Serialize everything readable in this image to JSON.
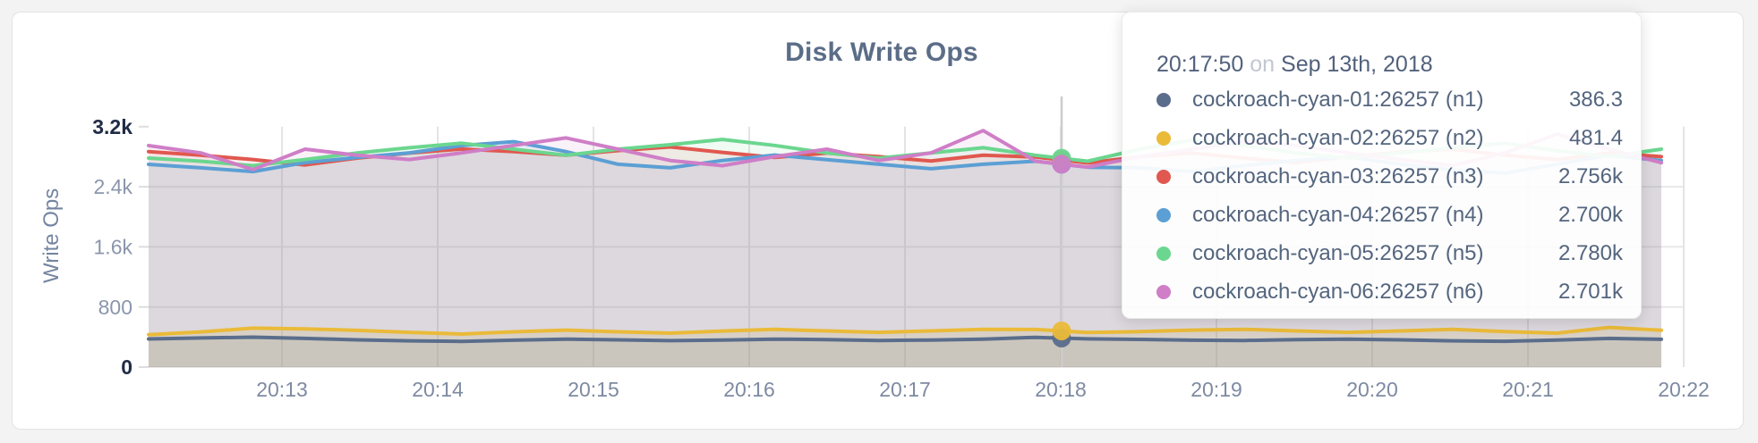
{
  "card": {
    "background": "#ffffff"
  },
  "colors": {
    "accent_text": "#5b6d87",
    "axis_tick_muted": "#8b96ab",
    "axis_tick_strong": "#202c46",
    "x_tick": "#7e8aa2",
    "hover_line": "#cccccc"
  },
  "chart_data": {
    "type": "line",
    "title": "Disk Write Ops",
    "ylabel": "Write Ops",
    "xlabel": "",
    "grid": true,
    "legend_position": "tooltip",
    "ylim": [
      0,
      3200
    ],
    "x_range": [
      "20:12:10",
      "20:21:50"
    ],
    "point_interval_seconds": 20,
    "x_ticks": [
      "20:13",
      "20:14",
      "20:15",
      "20:16",
      "20:17",
      "20:18",
      "20:19",
      "20:20",
      "20:21",
      "20:22"
    ],
    "y_ticks": [
      {
        "label": "3.2k",
        "value": 3200,
        "emphasis": true
      },
      {
        "label": "2.4k",
        "value": 2400,
        "emphasis": false
      },
      {
        "label": "1.6k",
        "value": 1600,
        "emphasis": false
      },
      {
        "label": "800",
        "value": 800,
        "emphasis": false
      },
      {
        "label": "0",
        "value": 0,
        "emphasis": true
      }
    ],
    "series": [
      {
        "name": "cockroach-cyan-01:26257 (n1)",
        "color": "#5a6d8c",
        "values": [
          375,
          388,
          398,
          382,
          362,
          350,
          342,
          358,
          372,
          362,
          352,
          360,
          372,
          366,
          354,
          360,
          372,
          396,
          376,
          368,
          358,
          354,
          366,
          372,
          362,
          350,
          344,
          360,
          382,
          370
        ]
      },
      {
        "name": "cockroach-cyan-02:26257 (n2)",
        "color": "#eaba39",
        "values": [
          432,
          468,
          518,
          508,
          488,
          462,
          440,
          470,
          492,
          470,
          452,
          480,
          502,
          482,
          462,
          482,
          502,
          501,
          461,
          472,
          492,
          503,
          481,
          462,
          482,
          502,
          472,
          452,
          528,
          490
        ]
      },
      {
        "name": "cockroach-cyan-03:26257 (n3)",
        "color": "#e0584f",
        "values": [
          2868,
          2820,
          2762,
          2690,
          2782,
          2848,
          2902,
          2868,
          2820,
          2882,
          2930,
          2858,
          2790,
          2848,
          2800,
          2742,
          2820,
          2796,
          2716,
          2800,
          2848,
          2782,
          2722,
          2800,
          2862,
          2900,
          2820,
          2762,
          2848,
          2800
        ]
      },
      {
        "name": "cockroach-cyan-04:26257 (n4)",
        "color": "#5c9fd4",
        "values": [
          2698,
          2652,
          2602,
          2722,
          2790,
          2852,
          2948,
          3000,
          2868,
          2700,
          2652,
          2750,
          2822,
          2760,
          2700,
          2640,
          2700,
          2740,
          2660,
          2652,
          2602,
          2682,
          2750,
          2800,
          2700,
          2622,
          2582,
          2700,
          2820,
          2750
        ]
      },
      {
        "name": "cockroach-cyan-05:26257 (n5)",
        "color": "#6bd68f",
        "values": [
          2782,
          2740,
          2680,
          2762,
          2850,
          2920,
          2980,
          2900,
          2820,
          2900,
          2960,
          3030,
          2950,
          2850,
          2780,
          2850,
          2920,
          2820,
          2740,
          2900,
          3020,
          2950,
          2850,
          2782,
          2850,
          2920,
          2980,
          2880,
          2800,
          2900
        ]
      },
      {
        "name": "cockroach-cyan-06:26257 (n6)",
        "color": "#cf7ec7",
        "values": [
          2948,
          2850,
          2630,
          2900,
          2820,
          2762,
          2850,
          2950,
          3050,
          2900,
          2750,
          2680,
          2800,
          2900,
          2750,
          2850,
          3148,
          2741,
          2661,
          2800,
          2900,
          3000,
          2950,
          2850,
          2762,
          2680,
          2850,
          3100,
          2900,
          2720
        ]
      }
    ]
  },
  "tooltip": {
    "time": "20:17:50",
    "connector": "on",
    "date": "Sep 13th, 2018",
    "rows": [
      {
        "label": "cockroach-cyan-01:26257 (n1)",
        "value": "386.3",
        "raw": 386.3,
        "color": "#5a6d8c"
      },
      {
        "label": "cockroach-cyan-02:26257 (n2)",
        "value": "481.4",
        "raw": 481.4,
        "color": "#eaba39"
      },
      {
        "label": "cockroach-cyan-03:26257 (n3)",
        "value": "2.756k",
        "raw": 2756,
        "color": "#e0584f"
      },
      {
        "label": "cockroach-cyan-04:26257 (n4)",
        "value": "2.700k",
        "raw": 2700,
        "color": "#5c9fd4"
      },
      {
        "label": "cockroach-cyan-05:26257 (n5)",
        "value": "2.780k",
        "raw": 2780,
        "color": "#6bd68f"
      },
      {
        "label": "cockroach-cyan-06:26257 (n6)",
        "value": "2.701k",
        "raw": 2701,
        "color": "#cf7ec7"
      }
    ]
  }
}
